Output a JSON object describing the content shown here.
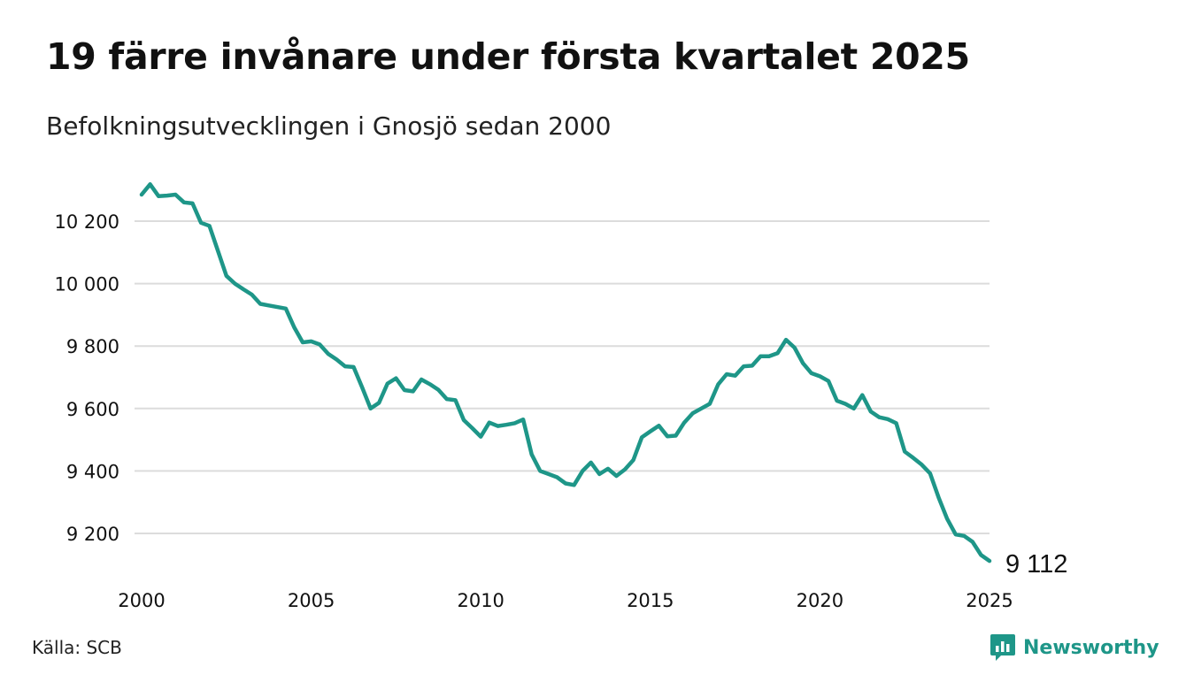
{
  "header": {
    "title": "19 färre invånare under första kvartalet 2025",
    "subtitle": "Befolkningsutvecklingen i Gnosjö sedan 2000"
  },
  "footer": {
    "source": "Källa: SCB",
    "brand": "Newsworthy",
    "brand_icon": "newsworthy-logo-icon"
  },
  "colors": {
    "line": "#1e9688",
    "grid": "#dcdcdc",
    "text": "#111111",
    "brand": "#1e9688"
  },
  "chart_data": {
    "type": "line",
    "title": "19 färre invånare under första kvartalet 2025",
    "subtitle": "Befolkningsutvecklingen i Gnosjö sedan 2000",
    "xlabel": "",
    "ylabel": "",
    "x_ticks": [
      2000,
      2005,
      2010,
      2015,
      2020,
      2025
    ],
    "y_ticks": [
      9200,
      9400,
      9600,
      9800,
      10000,
      10200
    ],
    "y_tick_labels": [
      "9 200",
      "9 400",
      "9 600",
      "9 800",
      "10 000",
      "10 200"
    ],
    "grid": true,
    "last_value_label": "9 112",
    "series": [
      {
        "x": [
          2000.0,
          2000.25,
          2000.5,
          2000.75,
          2001.0,
          2001.25,
          2001.5,
          2001.75,
          2002.0,
          2002.25,
          2002.5,
          2002.75,
          2003.0,
          2003.25,
          2003.5,
          2003.75,
          2004.0,
          2004.25,
          2004.5,
          2004.75,
          2005.0,
          2005.25,
          2005.5,
          2005.75,
          2006.0,
          2006.25,
          2006.5,
          2006.75,
          2007.0,
          2007.25,
          2007.5,
          2007.75,
          2008.0,
          2008.25,
          2008.5,
          2008.75,
          2009.0,
          2009.25,
          2009.5,
          2009.75,
          2010.0,
          2010.25,
          2010.5,
          2010.75,
          2011.0,
          2011.25,
          2011.5,
          2011.75,
          2012.0,
          2012.25,
          2012.5,
          2012.75,
          2013.0,
          2013.25,
          2013.5,
          2013.75,
          2014.0,
          2014.25,
          2014.5,
          2014.75,
          2015.0,
          2015.25,
          2015.5,
          2015.75,
          2016.0,
          2016.25,
          2016.5,
          2016.75,
          2017.0,
          2017.25,
          2017.5,
          2017.75,
          2018.0,
          2018.25,
          2018.5,
          2018.75,
          2019.0,
          2019.25,
          2019.5,
          2019.75,
          2020.0,
          2020.25,
          2020.5,
          2020.75,
          2021.0,
          2021.25,
          2021.5,
          2021.75,
          2022.0,
          2022.25,
          2022.5,
          2022.75,
          2023.0,
          2023.25,
          2023.5,
          2023.75,
          2024.0,
          2024.25,
          2024.5,
          2024.75,
          2025.0
        ],
        "values": [
          10285,
          10318,
          10280,
          10282,
          10285,
          10260,
          10257,
          10195,
          10185,
          10105,
          10025,
          10000,
          9982,
          9965,
          9935,
          9930,
          9925,
          9920,
          9860,
          9812,
          9815,
          9805,
          9775,
          9757,
          9735,
          9733,
          9668,
          9600,
          9618,
          9680,
          9697,
          9659,
          9655,
          9693,
          9678,
          9660,
          9630,
          9627,
          9563,
          9537,
          9510,
          9555,
          9544,
          9548,
          9553,
          9565,
          9453,
          9400,
          9390,
          9380,
          9360,
          9355,
          9400,
          9427,
          9390,
          9407,
          9384,
          9405,
          9435,
          9508,
          9527,
          9545,
          9511,
          9513,
          9555,
          9585,
          9600,
          9615,
          9677,
          9710,
          9705,
          9735,
          9737,
          9767,
          9767,
          9777,
          9820,
          9795,
          9745,
          9713,
          9703,
          9688,
          9625,
          9615,
          9600,
          9643,
          9590,
          9572,
          9566,
          9553,
          9462,
          9442,
          9420,
          9392,
          9315,
          9247,
          9197,
          9192,
          9173,
          9131,
          9112
        ]
      }
    ]
  }
}
